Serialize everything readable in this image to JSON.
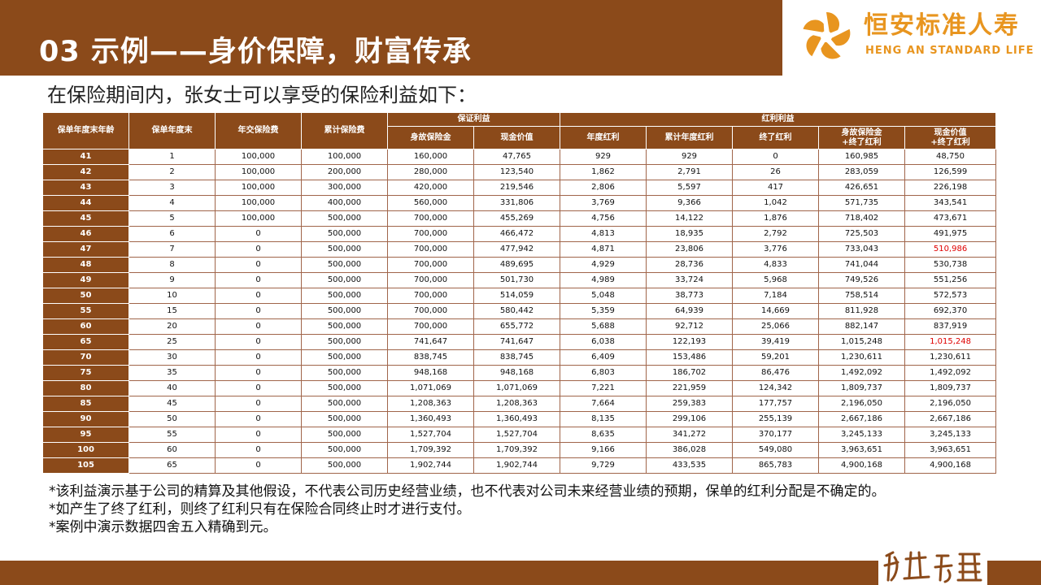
{
  "header": {
    "title": "03 示例——身价保障，财富传承",
    "brand_cn": "恒安标准人寿",
    "brand_en": "HENG AN STANDARD LIFE",
    "logo_icon": "pinwheel-logo-icon",
    "accent_color": "#8b4a1a",
    "brand_color": "#e8951f"
  },
  "intro": "在保险期间内，张女士可以享受的保险利益如下：",
  "table": {
    "group_headers": {
      "guaranteed": "保证利益",
      "bonus": "红利利益"
    },
    "columns": {
      "age": "保单年度末年龄",
      "year": "保单年度末",
      "annual_premium": "年交保险费",
      "total_premium": "累计保险费",
      "death_benefit": "身故保险金",
      "cash_value": "现金价值",
      "annual_bonus": "年度红利",
      "cum_bonus": "累计年度红利",
      "terminal_bonus": "终了红利",
      "death_plus_1": "身故保险金",
      "death_plus_2": "+终了红利",
      "cash_plus_1": "现金价值",
      "cash_plus_2": "+终了红利"
    },
    "highlight_color": "#e00000",
    "rows": [
      {
        "age": "41",
        "year": "1",
        "annual_premium": "100,000",
        "total_premium": "100,000",
        "death_benefit": "160,000",
        "cash_value": "47,765",
        "annual_bonus": "929",
        "cum_bonus": "929",
        "terminal_bonus": "0",
        "death_plus": "160,985",
        "cash_plus": "48,750"
      },
      {
        "age": "42",
        "year": "2",
        "annual_premium": "100,000",
        "total_premium": "200,000",
        "death_benefit": "280,000",
        "cash_value": "123,540",
        "annual_bonus": "1,862",
        "cum_bonus": "2,791",
        "terminal_bonus": "26",
        "death_plus": "283,059",
        "cash_plus": "126,599"
      },
      {
        "age": "43",
        "year": "3",
        "annual_premium": "100,000",
        "total_premium": "300,000",
        "death_benefit": "420,000",
        "cash_value": "219,546",
        "annual_bonus": "2,806",
        "cum_bonus": "5,597",
        "terminal_bonus": "417",
        "death_plus": "426,651",
        "cash_plus": "226,198"
      },
      {
        "age": "44",
        "year": "4",
        "annual_premium": "100,000",
        "total_premium": "400,000",
        "death_benefit": "560,000",
        "cash_value": "331,806",
        "annual_bonus": "3,769",
        "cum_bonus": "9,366",
        "terminal_bonus": "1,042",
        "death_plus": "571,735",
        "cash_plus": "343,541"
      },
      {
        "age": "45",
        "year": "5",
        "annual_premium": "100,000",
        "total_premium": "500,000",
        "death_benefit": "700,000",
        "cash_value": "455,269",
        "annual_bonus": "4,756",
        "cum_bonus": "14,122",
        "terminal_bonus": "1,876",
        "death_plus": "718,402",
        "cash_plus": "473,671"
      },
      {
        "age": "46",
        "year": "6",
        "annual_premium": "0",
        "total_premium": "500,000",
        "death_benefit": "700,000",
        "cash_value": "466,472",
        "annual_bonus": "4,813",
        "cum_bonus": "18,935",
        "terminal_bonus": "2,792",
        "death_plus": "725,503",
        "cash_plus": "491,975"
      },
      {
        "age": "47",
        "year": "7",
        "annual_premium": "0",
        "total_premium": "500,000",
        "death_benefit": "700,000",
        "cash_value": "477,942",
        "annual_bonus": "4,871",
        "cum_bonus": "23,806",
        "terminal_bonus": "3,776",
        "death_plus": "733,043",
        "cash_plus": "510,986",
        "highlight": true
      },
      {
        "age": "48",
        "year": "8",
        "annual_premium": "0",
        "total_premium": "500,000",
        "death_benefit": "700,000",
        "cash_value": "489,695",
        "annual_bonus": "4,929",
        "cum_bonus": "28,736",
        "terminal_bonus": "4,833",
        "death_plus": "741,044",
        "cash_plus": "530,738"
      },
      {
        "age": "49",
        "year": "9",
        "annual_premium": "0",
        "total_premium": "500,000",
        "death_benefit": "700,000",
        "cash_value": "501,730",
        "annual_bonus": "4,989",
        "cum_bonus": "33,724",
        "terminal_bonus": "5,968",
        "death_plus": "749,526",
        "cash_plus": "551,256"
      },
      {
        "age": "50",
        "year": "10",
        "annual_premium": "0",
        "total_premium": "500,000",
        "death_benefit": "700,000",
        "cash_value": "514,059",
        "annual_bonus": "5,048",
        "cum_bonus": "38,773",
        "terminal_bonus": "7,184",
        "death_plus": "758,514",
        "cash_plus": "572,573"
      },
      {
        "age": "55",
        "year": "15",
        "annual_premium": "0",
        "total_premium": "500,000",
        "death_benefit": "700,000",
        "cash_value": "580,442",
        "annual_bonus": "5,359",
        "cum_bonus": "64,939",
        "terminal_bonus": "14,669",
        "death_plus": "811,928",
        "cash_plus": "692,370"
      },
      {
        "age": "60",
        "year": "20",
        "annual_premium": "0",
        "total_premium": "500,000",
        "death_benefit": "700,000",
        "cash_value": "655,772",
        "annual_bonus": "5,688",
        "cum_bonus": "92,712",
        "terminal_bonus": "25,066",
        "death_plus": "882,147",
        "cash_plus": "837,919"
      },
      {
        "age": "65",
        "year": "25",
        "annual_premium": "0",
        "total_premium": "500,000",
        "death_benefit": "741,647",
        "cash_value": "741,647",
        "annual_bonus": "6,038",
        "cum_bonus": "122,193",
        "terminal_bonus": "39,419",
        "death_plus": "1,015,248",
        "cash_plus": "1,015,248",
        "highlight": true
      },
      {
        "age": "70",
        "year": "30",
        "annual_premium": "0",
        "total_premium": "500,000",
        "death_benefit": "838,745",
        "cash_value": "838,745",
        "annual_bonus": "6,409",
        "cum_bonus": "153,486",
        "terminal_bonus": "59,201",
        "death_plus": "1,230,611",
        "cash_plus": "1,230,611"
      },
      {
        "age": "75",
        "year": "35",
        "annual_premium": "0",
        "total_premium": "500,000",
        "death_benefit": "948,168",
        "cash_value": "948,168",
        "annual_bonus": "6,803",
        "cum_bonus": "186,702",
        "terminal_bonus": "86,476",
        "death_plus": "1,492,092",
        "cash_plus": "1,492,092"
      },
      {
        "age": "80",
        "year": "40",
        "annual_premium": "0",
        "total_premium": "500,000",
        "death_benefit": "1,071,069",
        "cash_value": "1,071,069",
        "annual_bonus": "7,221",
        "cum_bonus": "221,959",
        "terminal_bonus": "124,342",
        "death_plus": "1,809,737",
        "cash_plus": "1,809,737"
      },
      {
        "age": "85",
        "year": "45",
        "annual_premium": "0",
        "total_premium": "500,000",
        "death_benefit": "1,208,363",
        "cash_value": "1,208,363",
        "annual_bonus": "7,664",
        "cum_bonus": "259,383",
        "terminal_bonus": "177,757",
        "death_plus": "2,196,050",
        "cash_plus": "2,196,050"
      },
      {
        "age": "90",
        "year": "50",
        "annual_premium": "0",
        "total_premium": "500,000",
        "death_benefit": "1,360,493",
        "cash_value": "1,360,493",
        "annual_bonus": "8,135",
        "cum_bonus": "299,106",
        "terminal_bonus": "255,139",
        "death_plus": "2,667,186",
        "cash_plus": "2,667,186"
      },
      {
        "age": "95",
        "year": "55",
        "annual_premium": "0",
        "total_premium": "500,000",
        "death_benefit": "1,527,704",
        "cash_value": "1,527,704",
        "annual_bonus": "8,635",
        "cum_bonus": "341,272",
        "terminal_bonus": "370,177",
        "death_plus": "3,245,133",
        "cash_plus": "3,245,133"
      },
      {
        "age": "100",
        "year": "60",
        "annual_premium": "0",
        "total_premium": "500,000",
        "death_benefit": "1,709,392",
        "cash_value": "1,709,392",
        "annual_bonus": "9,166",
        "cum_bonus": "386,028",
        "terminal_bonus": "549,080",
        "death_plus": "3,963,651",
        "cash_plus": "3,963,651"
      },
      {
        "age": "105",
        "year": "65",
        "annual_premium": "0",
        "total_premium": "500,000",
        "death_benefit": "1,902,744",
        "cash_value": "1,902,744",
        "annual_bonus": "9,729",
        "cum_bonus": "433,535",
        "terminal_bonus": "865,783",
        "death_plus": "4,900,168",
        "cash_plus": "4,900,168"
      }
    ]
  },
  "notes": [
    "*该利益演示基于公司的精算及其他假设，不代表公司历史经营业绩，也不代表对公司未来经营业绩的预期，保单的红利分配是不确定的。",
    "*如产生了终了红利，则终了红利只有在保险合同终止时才进行支付。",
    "*案例中演示数据四舍五入精确到元。"
  ],
  "footer": {
    "mark_icon": "calligraphy-seal-icon"
  }
}
